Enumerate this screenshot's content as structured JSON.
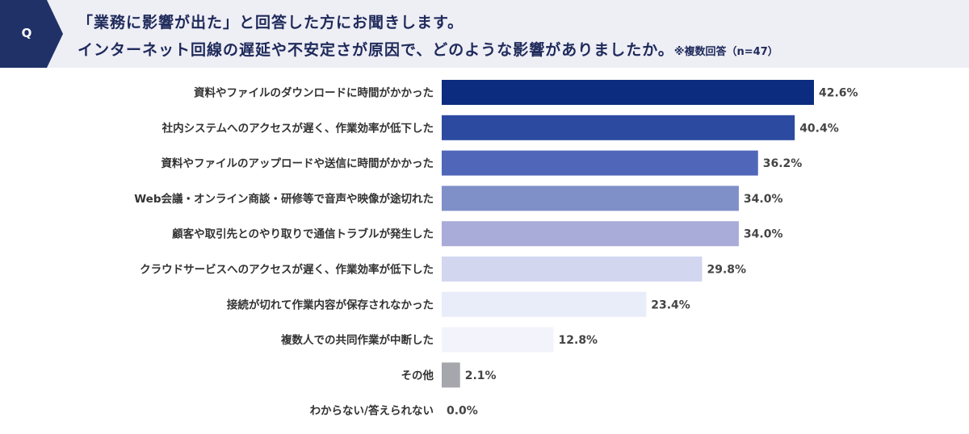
{
  "question": {
    "marker": "Q",
    "line1": "「業務に影響が出た」と回答した方にお聞きします。",
    "line2": "インターネット回線の遅延や不安定さが原因で、どのような影響がありましたか。",
    "note": "※複数回答（n=47）"
  },
  "colors": {
    "marker_bg": "#1f3167",
    "bars": [
      "#0b2c7f",
      "#2d4aa1",
      "#5066b8",
      "#7f8fc8",
      "#a9acd8",
      "#d3d6ef",
      "#e9ecf9",
      "#f2f3fb",
      "#a6a6ad",
      "#cccccc"
    ]
  },
  "chart_data": {
    "type": "bar",
    "orientation": "horizontal",
    "categories": [
      "資料やファイルのダウンロードに時間がかかった",
      "社内システムへのアクセスが遅く、作業効率が低下した",
      "資料やファイルのアップロードや送信に時間がかかった",
      "Web会議・オンライン商談・研修等で音声や映像が途切れた",
      "顧客や取引先とのやり取りで通信トラブルが発生した",
      "クラウドサービスへのアクセスが遅く、作業効率が低下した",
      "接続が切れて作業内容が保存されなかった",
      "複数人での共同作業が中断した",
      "その他",
      "わからない/答えられない"
    ],
    "values": [
      42.6,
      40.4,
      36.2,
      34.0,
      34.0,
      29.8,
      23.4,
      12.8,
      2.1,
      0.0
    ],
    "value_labels": [
      "42.6%",
      "40.4%",
      "36.2%",
      "34.0%",
      "34.0%",
      "29.8%",
      "23.4%",
      "12.8%",
      "2.1%",
      "0.0%"
    ],
    "xlim": [
      0,
      50
    ]
  }
}
